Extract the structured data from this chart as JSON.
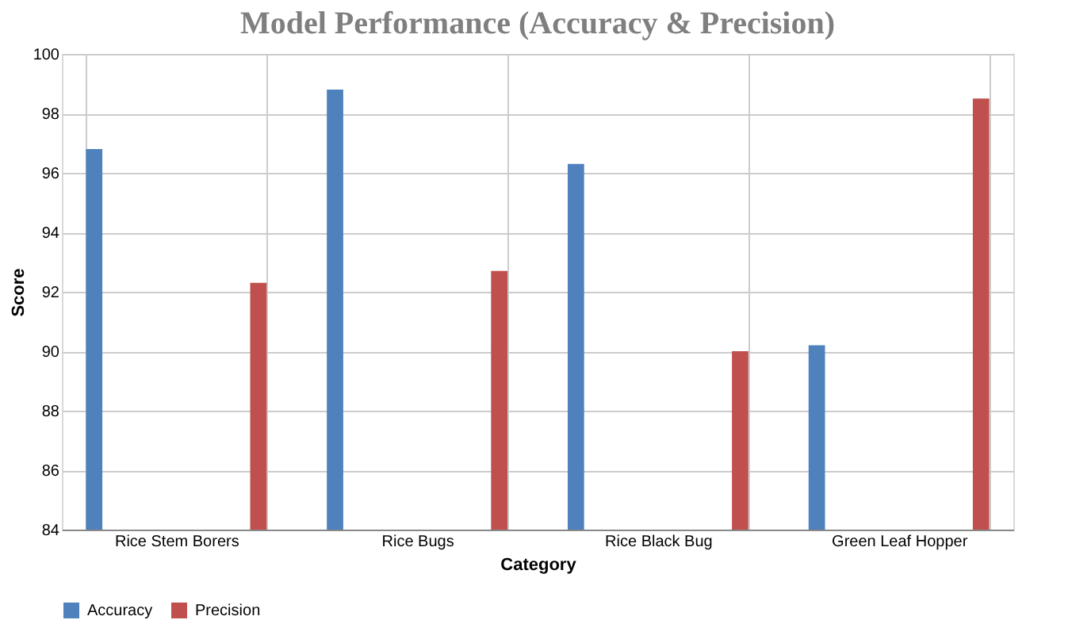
{
  "chart_data": {
    "type": "bar",
    "title": "Model Performance (Accuracy & Precision)",
    "xlabel": "Category",
    "ylabel": "Score",
    "categories": [
      "Rice Stem Borers",
      "Rice Bugs",
      "Rice Black Bug",
      "Green Leaf Hopper"
    ],
    "series": [
      {
        "name": "Accuracy",
        "color": "#4f81bd",
        "values": [
          96.8,
          98.8,
          96.3,
          90.2
        ]
      },
      {
        "name": "Precision",
        "color": "#c0504d",
        "values": [
          92.3,
          92.7,
          90.0,
          98.5
        ]
      }
    ],
    "ylim": [
      84,
      100
    ],
    "yticks": [
      84,
      86,
      88,
      90,
      92,
      94,
      96,
      98,
      100
    ],
    "grid": true,
    "legend": "bottom"
  }
}
